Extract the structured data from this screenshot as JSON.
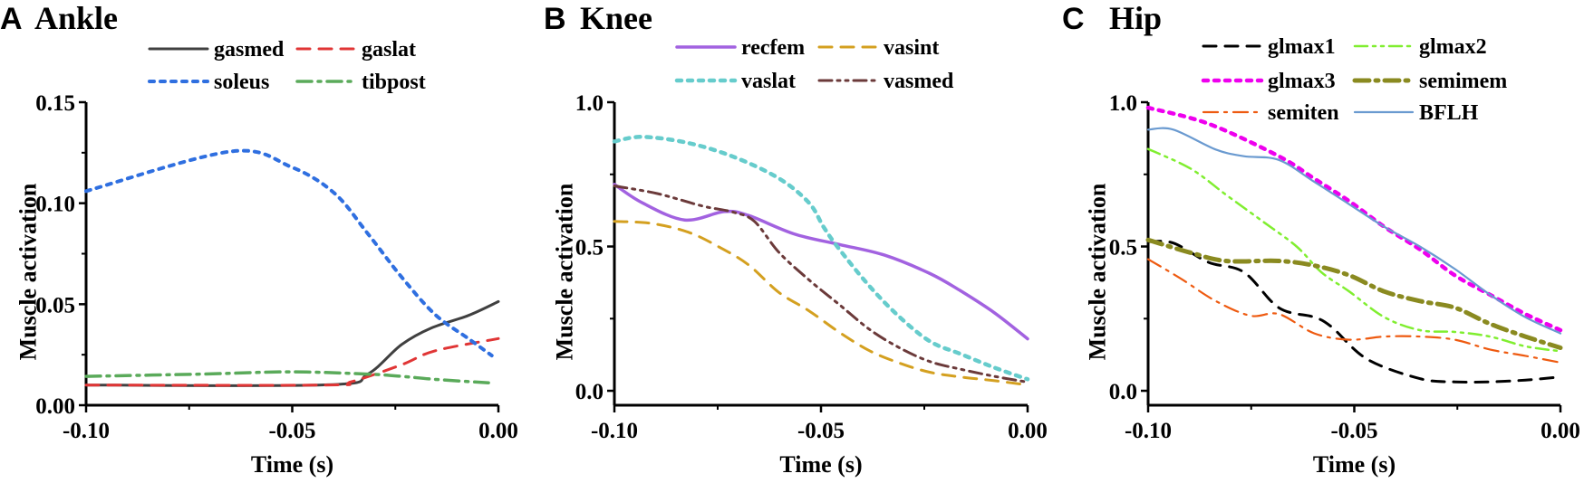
{
  "chart_data": [
    {
      "type": "line",
      "panel_letter": "A",
      "title": "Ankle",
      "xlabel": "Time (s)",
      "ylabel": "Muscle activation",
      "xlim": [
        -0.1,
        0.0
      ],
      "ylim": [
        0.0,
        0.15
      ],
      "xticks": [
        "-0.10",
        "-0.05",
        "0.00"
      ],
      "xtick_values": [
        -0.1,
        -0.05,
        0.0
      ],
      "yticks": [
        "0.00",
        "0.05",
        "0.10",
        "0.15"
      ],
      "ytick_values": [
        0.0,
        0.05,
        0.1,
        0.15
      ],
      "legend_position": "top",
      "series": [
        {
          "name": "gasmed",
          "color": "#404040",
          "style": "solid",
          "x": [
            -0.1,
            -0.0414,
            -0.0317,
            -0.0235,
            -0.0162,
            -0.0073,
            0.0
          ],
          "y": [
            0.01,
            0.0101,
            0.0154,
            0.03,
            0.0383,
            0.0444,
            0.0513
          ]
        },
        {
          "name": "gaslat",
          "color": "#e03535",
          "style": "dash",
          "x": [
            -0.1,
            -0.042,
            -0.0357,
            -0.0235,
            -0.0154,
            0.0
          ],
          "y": [
            0.01,
            0.01,
            0.0116,
            0.02,
            0.0269,
            0.033
          ]
        },
        {
          "name": "soleus",
          "color": "#2f6fe0",
          "style": "dot",
          "x": [
            -0.1,
            -0.065,
            -0.0503,
            -0.0398,
            -0.0317,
            -0.0235,
            -0.0154,
            -0.0073,
            -0.0016
          ],
          "y": [
            0.106,
            0.1256,
            0.118,
            0.105,
            0.085,
            0.0635,
            0.045,
            0.033,
            0.0246
          ]
        },
        {
          "name": "tibpost",
          "color": "#5aaa5a",
          "style": "dashdot",
          "x": [
            -0.1,
            -0.0722,
            -0.0503,
            -0.0317,
            -0.0235,
            -0.0154,
            -0.0024
          ],
          "y": [
            0.0143,
            0.0154,
            0.0165,
            0.0154,
            0.0143,
            0.0128,
            0.0111
          ]
        }
      ]
    },
    {
      "type": "line",
      "panel_letter": "B",
      "title": "Knee",
      "xlabel": "Time (s)",
      "ylabel": "Muscle activation",
      "xlim": [
        -0.1,
        0.0
      ],
      "ylim": [
        -0.05,
        1.0
      ],
      "xticks": [
        "-0.10",
        "-0.05",
        "0.00"
      ],
      "xtick_values": [
        -0.1,
        -0.05,
        0.0
      ],
      "yticks": [
        "0.0",
        "0.5",
        "1.0"
      ],
      "ytick_values": [
        0.0,
        0.5,
        1.0
      ],
      "legend_position": "top",
      "series": [
        {
          "name": "recfem",
          "color": "#a262e0",
          "style": "solid",
          "x": [
            -0.1,
            -0.0932,
            -0.083,
            -0.0734,
            -0.0676,
            -0.0566,
            -0.0456,
            -0.0346,
            -0.0236,
            -0.0163,
            -0.008,
            0.0
          ],
          "y": [
            0.715,
            0.651,
            0.592,
            0.621,
            0.608,
            0.544,
            0.507,
            0.47,
            0.406,
            0.347,
            0.27,
            0.18
          ]
        },
        {
          "name": "vasint",
          "color": "#d4a020",
          "style": "dash",
          "x": [
            -0.1,
            -0.091,
            -0.0822,
            -0.0749,
            -0.0676,
            -0.0602,
            -0.0529,
            -0.0456,
            -0.0383,
            -0.031,
            -0.0236,
            -0.0163,
            -0.008,
            0.0
          ],
          "y": [
            0.587,
            0.58,
            0.55,
            0.5,
            0.437,
            0.341,
            0.277,
            0.203,
            0.139,
            0.096,
            0.064,
            0.048,
            0.035,
            0.02
          ]
        },
        {
          "name": "vaslat",
          "color": "#66cccc",
          "style": "dot",
          "x": [
            -0.1,
            -0.0932,
            -0.0822,
            -0.0712,
            -0.0602,
            -0.0529,
            -0.0493,
            -0.0456,
            -0.0383,
            -0.031,
            -0.0236,
            -0.0163,
            -0.008,
            0.0
          ],
          "y": [
            0.864,
            0.88,
            0.859,
            0.811,
            0.736,
            0.651,
            0.566,
            0.491,
            0.363,
            0.256,
            0.171,
            0.128,
            0.08,
            0.04
          ]
        },
        {
          "name": "vasmed",
          "color": "#6b3a3a",
          "style": "dashdotdot",
          "x": [
            -0.1,
            -0.0895,
            -0.0786,
            -0.0712,
            -0.0661,
            -0.0602,
            -0.0529,
            -0.0456,
            -0.0383,
            -0.031,
            -0.0236,
            -0.0163,
            -0.008,
            0.0
          ],
          "y": [
            0.71,
            0.683,
            0.64,
            0.619,
            0.587,
            0.48,
            0.384,
            0.299,
            0.213,
            0.149,
            0.101,
            0.075,
            0.05,
            0.03
          ]
        }
      ]
    },
    {
      "type": "line",
      "panel_letter": "C",
      "title": "Hip",
      "xlabel": "Time (s)",
      "ylabel": "Muscle activation",
      "xlim": [
        -0.1,
        0.0
      ],
      "ylim": [
        -0.05,
        1.0
      ],
      "xticks": [
        "-0.10",
        "-0.05",
        "0.00"
      ],
      "xtick_values": [
        -0.1,
        -0.05,
        0.0
      ],
      "yticks": [
        "0.0",
        "0.5",
        "1.0"
      ],
      "ytick_values": [
        0.0,
        0.5,
        1.0
      ],
      "legend_position": "top",
      "series": [
        {
          "name": "glmax1",
          "color": "#000000",
          "style": "dash",
          "x": [
            -0.1,
            -0.0939,
            -0.0853,
            -0.0768,
            -0.0683,
            -0.0597,
            -0.0555,
            -0.0469,
            -0.0341,
            -0.0256,
            -0.0171,
            -0.0085,
            0.0
          ],
          "y": [
            0.517,
            0.512,
            0.445,
            0.411,
            0.288,
            0.255,
            0.221,
            0.11,
            0.042,
            0.031,
            0.031,
            0.037,
            0.048
          ]
        },
        {
          "name": "glmax2",
          "color": "#80ee30",
          "style": "dashdotdot",
          "x": [
            -0.1,
            -0.0896,
            -0.0811,
            -0.0725,
            -0.064,
            -0.058,
            -0.0512,
            -0.0427,
            -0.0341,
            -0.0256,
            -0.0171,
            -0.0085,
            0.0
          ],
          "y": [
            0.838,
            0.769,
            0.679,
            0.59,
            0.5,
            0.411,
            0.344,
            0.255,
            0.21,
            0.204,
            0.188,
            0.154,
            0.137
          ]
        },
        {
          "name": "glmax3",
          "color": "#ee00ee",
          "style": "dot",
          "x": [
            -0.1,
            -0.0853,
            -0.0683,
            -0.0597,
            -0.0512,
            -0.0427,
            -0.0341,
            -0.0256,
            -0.0171,
            -0.0085,
            0.0
          ],
          "y": [
            0.981,
            0.925,
            0.813,
            0.735,
            0.657,
            0.568,
            0.49,
            0.4,
            0.333,
            0.266,
            0.21
          ]
        },
        {
          "name": "semimem",
          "color": "#8a8a20",
          "style": "dashdot",
          "x": [
            -0.1,
            -0.0896,
            -0.0811,
            -0.0683,
            -0.0597,
            -0.0512,
            -0.0427,
            -0.0341,
            -0.0256,
            -0.0171,
            -0.0085,
            0.0
          ],
          "y": [
            0.523,
            0.478,
            0.45,
            0.45,
            0.434,
            0.4,
            0.344,
            0.311,
            0.288,
            0.232,
            0.188,
            0.149
          ]
        },
        {
          "name": "semiten",
          "color": "#ee5a10",
          "style": "dashdot",
          "x": [
            -0.1,
            -0.0921,
            -0.0836,
            -0.0751,
            -0.0683,
            -0.0597,
            -0.0512,
            -0.0427,
            -0.0341,
            -0.0256,
            -0.0171,
            -0.0085,
            0.0
          ],
          "y": [
            0.456,
            0.389,
            0.311,
            0.26,
            0.266,
            0.199,
            0.177,
            0.188,
            0.188,
            0.177,
            0.143,
            0.121,
            0.098
          ]
        },
        {
          "name": "BFLH",
          "color": "#6a9ad0",
          "style": "solid",
          "x": [
            -0.1,
            -0.0939,
            -0.0836,
            -0.0768,
            -0.0683,
            -0.0597,
            -0.0512,
            -0.0427,
            -0.0341,
            -0.0256,
            -0.0171,
            -0.0085,
            0.0
          ],
          "y": [
            0.905,
            0.905,
            0.836,
            0.813,
            0.8,
            0.724,
            0.646,
            0.568,
            0.5,
            0.422,
            0.333,
            0.255,
            0.199
          ]
        }
      ]
    }
  ]
}
